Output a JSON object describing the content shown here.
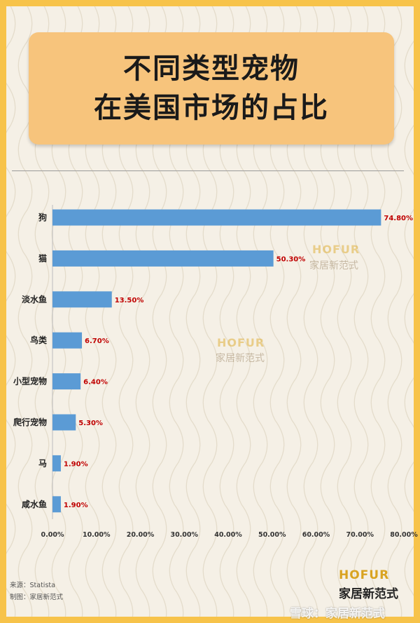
{
  "title": {
    "line1": "不同类型宠物",
    "line2": "在美国市场的占比"
  },
  "chart_data": {
    "type": "bar",
    "orientation": "horizontal",
    "categories": [
      "狗",
      "猫",
      "淡水鱼",
      "鸟类",
      "小型宠物",
      "爬行宠物",
      "马",
      "咸水鱼"
    ],
    "values": [
      74.8,
      50.3,
      13.5,
      6.7,
      6.4,
      5.3,
      1.9,
      1.9
    ],
    "value_labels": [
      "74.80%",
      "50.30%",
      "13.50%",
      "6.70%",
      "6.40%",
      "5.30%",
      "1.90%",
      "1.90%"
    ],
    "xlim": [
      0,
      80
    ],
    "xticks": [
      0,
      10,
      20,
      30,
      40,
      50,
      60,
      70,
      80
    ],
    "xtick_labels": [
      "0.00%",
      "10.00%",
      "20.00%",
      "30.00%",
      "40.00%",
      "50.00%",
      "60.00%",
      "70.00%",
      "80.00%"
    ],
    "bar_color": "#5b9bd5",
    "label_color": "#c00000",
    "grid": false
  },
  "footer": {
    "source": "来源：Statista",
    "made_by": "制图：家居新范式"
  },
  "brand": {
    "en": "HOFUR",
    "cn": "家居新范式"
  },
  "watermarks": {
    "en": "HOFUR",
    "cn": "家居新范式"
  },
  "overlay": {
    "site": "雪球：家居新范式"
  },
  "colors": {
    "border": "#f7c34a",
    "background": "#f5f0e6",
    "title_box": "#f7c47c",
    "brand_gold": "#d9a321"
  }
}
